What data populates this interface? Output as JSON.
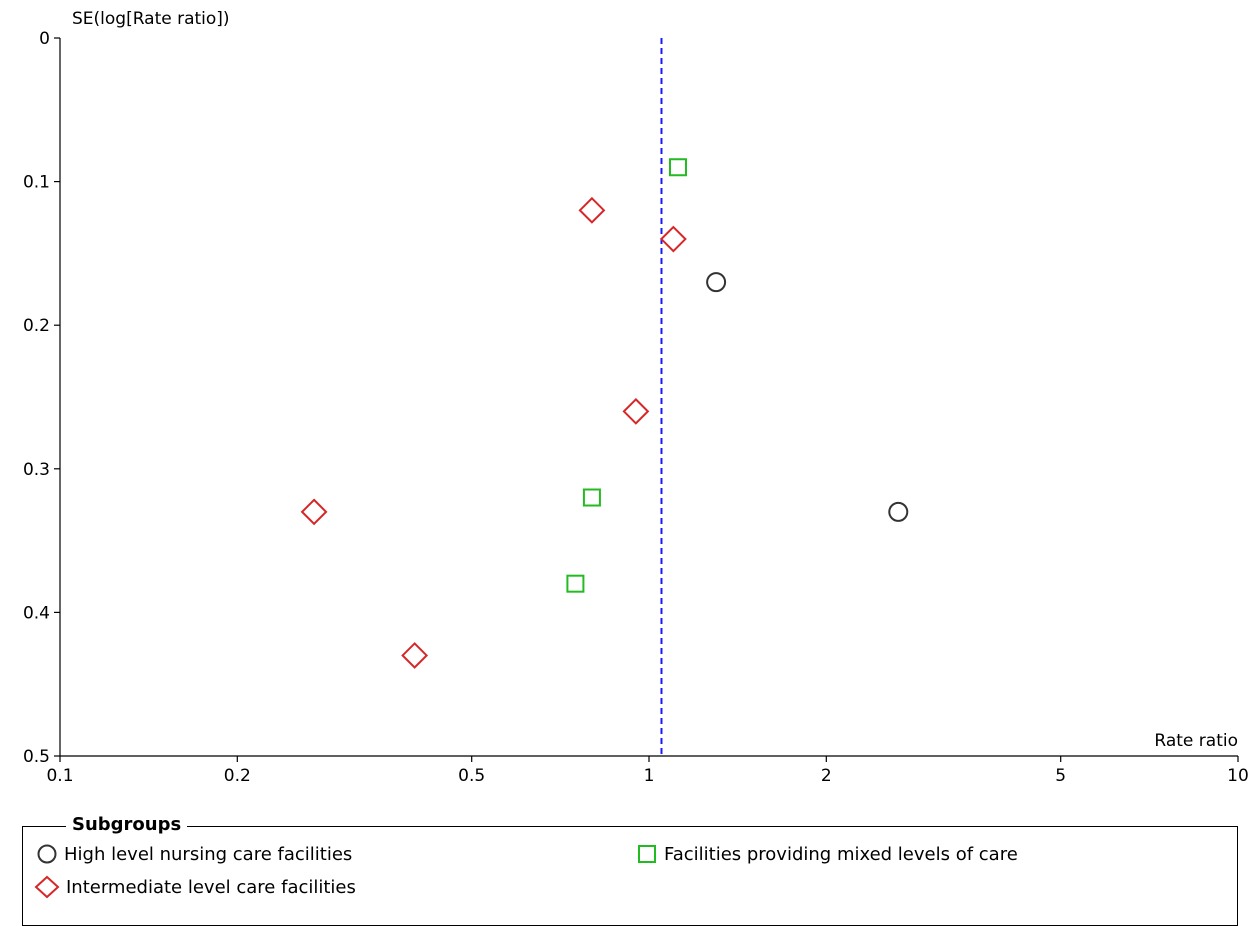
{
  "chart_data": {
    "type": "scatter",
    "title": "",
    "xlabel": "Rate ratio",
    "ylabel": "SE(log[Rate ratio])",
    "x_scale": "log",
    "xlim": [
      0.1,
      10
    ],
    "ylim": [
      0,
      0.5
    ],
    "y_inverted": true,
    "x_ticks": [
      "0.1",
      "0.2",
      "0.5",
      "1",
      "2",
      "5",
      "10"
    ],
    "x_tick_values": [
      0.1,
      0.2,
      0.5,
      1,
      2,
      5,
      10
    ],
    "y_ticks": [
      "0",
      "0.1",
      "0.2",
      "0.3",
      "0.4",
      "0.5"
    ],
    "y_tick_values": [
      0,
      0.1,
      0.2,
      0.3,
      0.4,
      0.5
    ],
    "reference_line": {
      "x": 1.05,
      "style": "dashed",
      "color": "#1a1aff"
    },
    "series": [
      {
        "name": "High level nursing care facilities",
        "marker": "circle",
        "color": "#333333",
        "points": [
          {
            "x": 1.3,
            "y": 0.17
          },
          {
            "x": 2.65,
            "y": 0.33
          }
        ]
      },
      {
        "name": "Intermediate level care facilities",
        "marker": "diamond",
        "color": "#d62728",
        "points": [
          {
            "x": 0.8,
            "y": 0.12
          },
          {
            "x": 1.1,
            "y": 0.14
          },
          {
            "x": 0.95,
            "y": 0.26
          },
          {
            "x": 0.27,
            "y": 0.33
          },
          {
            "x": 0.4,
            "y": 0.43
          }
        ]
      },
      {
        "name": "Facilities providing mixed levels of care",
        "marker": "square",
        "color": "#22bb22",
        "points": [
          {
            "x": 1.12,
            "y": 0.09
          },
          {
            "x": 0.8,
            "y": 0.32
          },
          {
            "x": 0.75,
            "y": 0.38
          }
        ]
      }
    ]
  },
  "legend": {
    "title": "Subgroups",
    "items": [
      {
        "label": "High level nursing care facilities",
        "marker": "circle",
        "color": "#333333"
      },
      {
        "label": "Facilities providing mixed levels of care",
        "marker": "square",
        "color": "#22bb22"
      },
      {
        "label": "Intermediate level care facilities",
        "marker": "diamond",
        "color": "#d62728"
      }
    ]
  }
}
